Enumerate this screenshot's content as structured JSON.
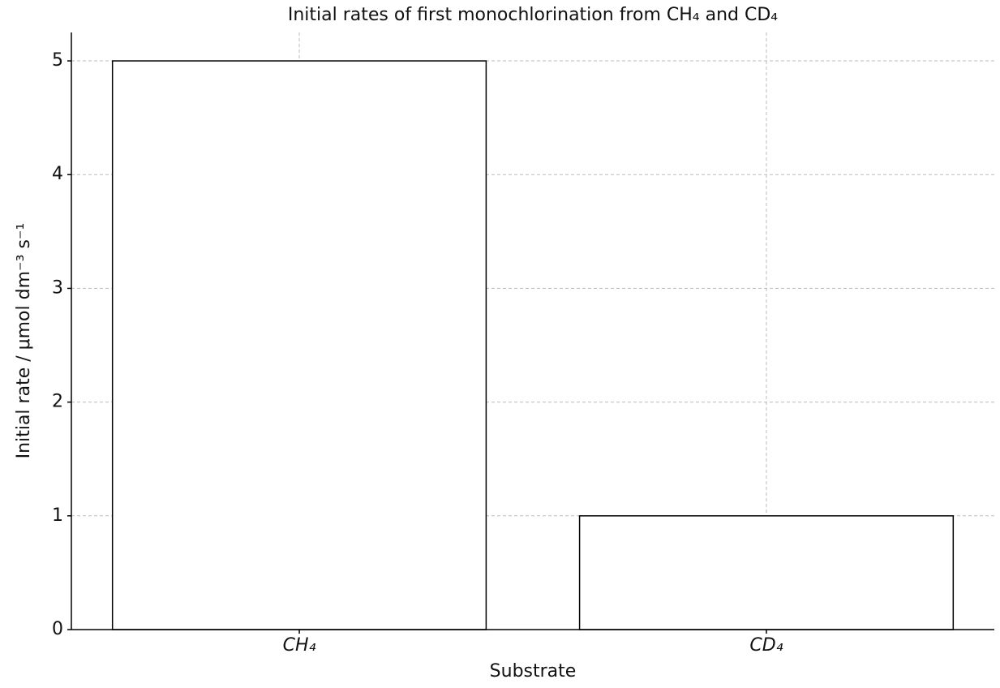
{
  "chart_data": {
    "type": "bar",
    "title": "Initial rates of first monochlorination from CH₄ and CD₄",
    "x_label": "Substrate",
    "y_label": "Initial rate / μmol dm⁻³ s⁻¹",
    "categories": [
      "CH₄",
      "CD₄"
    ],
    "values": [
      5,
      1
    ],
    "color": "#ffffff",
    "edge_color": "#000000",
    "ylim": [
      0,
      5.25
    ],
    "yticks": [
      0,
      1,
      2,
      3,
      4,
      5
    ],
    "grid": true
  }
}
